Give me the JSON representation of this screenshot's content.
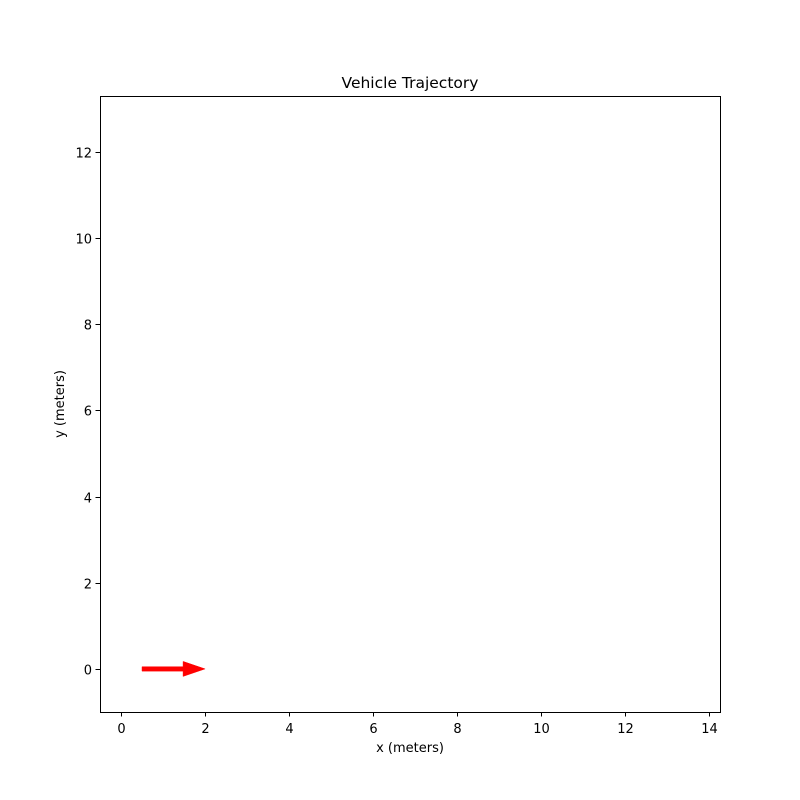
{
  "chart_data": {
    "type": "scatter",
    "title": "Vehicle Trajectory",
    "xlabel": "x (meters)",
    "ylabel": "y (meters)",
    "xlim": [
      -0.5,
      14.25
    ],
    "ylim": [
      -1.0,
      13.3
    ],
    "xticks": [
      0,
      2,
      4,
      6,
      8,
      10,
      12,
      14
    ],
    "yticks": [
      0,
      2,
      4,
      6,
      8,
      10,
      12
    ],
    "grid": false,
    "arrows": [
      {
        "x": 0.5,
        "y": 0.0,
        "dx": 1.5,
        "dy": 0.0,
        "color": "#ff0000"
      }
    ]
  }
}
